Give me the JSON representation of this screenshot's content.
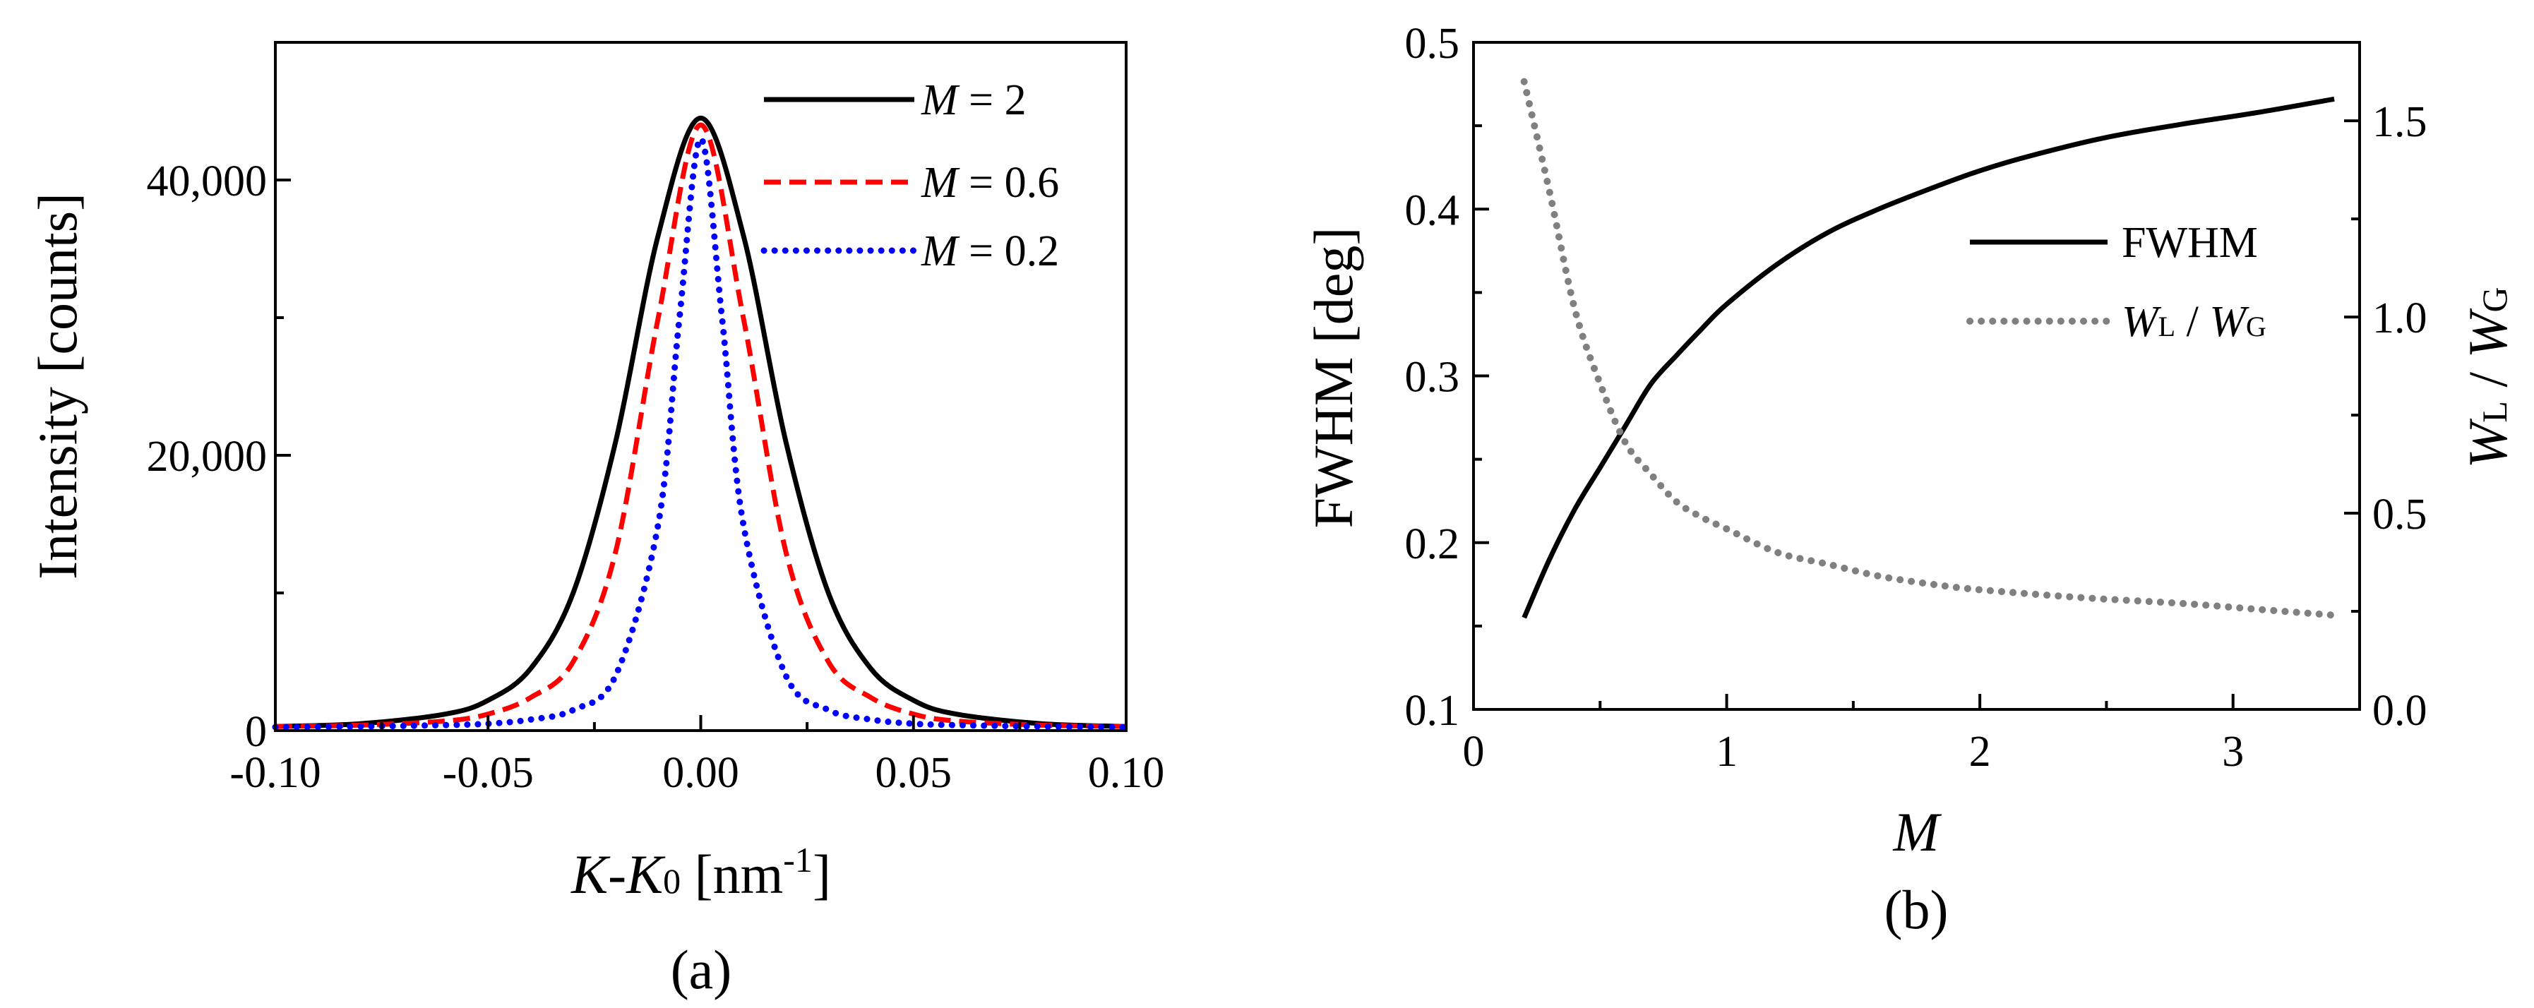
{
  "chart_data": [
    {
      "panel": "a",
      "type": "line",
      "caption": "(a)",
      "xlabel": {
        "main": "K",
        "dash": "-",
        "sym": "K",
        "sub": "0",
        "unit_open": " [nm",
        "sup": "-1",
        "unit_close": "]"
      },
      "ylabel": "Intensity [counts]",
      "xlim": [
        -0.1,
        0.1
      ],
      "ylim": [
        0,
        50000
      ],
      "xticks": [
        {
          "value": -0.1,
          "label": "-0.10"
        },
        {
          "value": -0.05,
          "label": "-0.05"
        },
        {
          "value": 0.0,
          "label": "0.00"
        },
        {
          "value": 0.05,
          "label": "0.05"
        },
        {
          "value": 0.1,
          "label": "0.10"
        }
      ],
      "yticks": [
        {
          "value": 0,
          "label": "0"
        },
        {
          "value": 20000,
          "label": "20,000"
        },
        {
          "value": 40000,
          "label": "40,000"
        }
      ],
      "legend_position": "top-right",
      "series": [
        {
          "name": "M = 2",
          "sym": "M",
          "rest": " = 2",
          "color": "#000000",
          "style": "solid",
          "points": [
            [
              -0.1,
              300
            ],
            [
              -0.08,
              500
            ],
            [
              -0.06,
              1200
            ],
            [
              -0.05,
              2200
            ],
            [
              -0.04,
              4500
            ],
            [
              -0.03,
              10000
            ],
            [
              -0.02,
              21000
            ],
            [
              -0.01,
              36000
            ],
            [
              0.0,
              44500
            ],
            [
              0.01,
              36000
            ],
            [
              0.02,
              21000
            ],
            [
              0.03,
              10000
            ],
            [
              0.04,
              4500
            ],
            [
              0.05,
              2200
            ],
            [
              0.06,
              1200
            ],
            [
              0.08,
              500
            ],
            [
              0.1,
              300
            ]
          ]
        },
        {
          "name": "M = 0.6",
          "sym": "M",
          "rest": " = 0.6",
          "color": "#ff0000",
          "style": "dashed",
          "points": [
            [
              -0.1,
              300
            ],
            [
              -0.08,
              400
            ],
            [
              -0.06,
              700
            ],
            [
              -0.05,
              1200
            ],
            [
              -0.04,
              2400
            ],
            [
              -0.03,
              5000
            ],
            [
              -0.02,
              13000
            ],
            [
              -0.01,
              30000
            ],
            [
              0.0,
              44000
            ],
            [
              0.01,
              30000
            ],
            [
              0.02,
              13000
            ],
            [
              0.03,
              5000
            ],
            [
              0.04,
              2400
            ],
            [
              0.05,
              1200
            ],
            [
              0.06,
              700
            ],
            [
              0.08,
              400
            ],
            [
              0.1,
              300
            ]
          ]
        },
        {
          "name": "M = 0.2",
          "sym": "M",
          "rest": " = 0.2",
          "color": "#0000ff",
          "style": "dotted",
          "points": [
            [
              -0.1,
              250
            ],
            [
              -0.08,
              300
            ],
            [
              -0.06,
              400
            ],
            [
              -0.05,
              500
            ],
            [
              -0.04,
              800
            ],
            [
              -0.03,
              1500
            ],
            [
              -0.02,
              4000
            ],
            [
              -0.01,
              15000
            ],
            [
              -0.005,
              30000
            ],
            [
              0.0,
              43000
            ],
            [
              0.005,
              30000
            ],
            [
              0.01,
              15000
            ],
            [
              0.02,
              4000
            ],
            [
              0.03,
              1500
            ],
            [
              0.04,
              800
            ],
            [
              0.05,
              500
            ],
            [
              0.06,
              400
            ],
            [
              0.08,
              300
            ],
            [
              0.1,
              250
            ]
          ]
        }
      ]
    },
    {
      "panel": "b",
      "type": "line",
      "caption": "(b)",
      "xlabel": "M",
      "ylabel": "FWHM [deg]",
      "y2label": {
        "w1": "W",
        "s1": "L",
        "mid": " / ",
        "w2": "W",
        "s2": "G"
      },
      "xlim": [
        0,
        3.5
      ],
      "ylim": [
        0.1,
        0.5
      ],
      "y2lim": [
        0.0,
        1.7
      ],
      "xticks": [
        {
          "value": 0,
          "label": "0"
        },
        {
          "value": 1,
          "label": "1"
        },
        {
          "value": 2,
          "label": "2"
        },
        {
          "value": 3,
          "label": "3"
        }
      ],
      "yticks": [
        {
          "value": 0.1,
          "label": "0.1"
        },
        {
          "value": 0.2,
          "label": "0.2"
        },
        {
          "value": 0.3,
          "label": "0.3"
        },
        {
          "value": 0.4,
          "label": "0.4"
        },
        {
          "value": 0.5,
          "label": "0.5"
        }
      ],
      "y2ticks": [
        {
          "value": 0.0,
          "label": "0.0"
        },
        {
          "value": 0.5,
          "label": "0.5"
        },
        {
          "value": 1.0,
          "label": "1.0"
        },
        {
          "value": 1.5,
          "label": "1.5"
        }
      ],
      "legend_position": "center-right",
      "series": [
        {
          "name": "FWHM",
          "axis": "left",
          "color": "#000000",
          "style": "solid",
          "points": [
            [
              0.2,
              0.155
            ],
            [
              0.3,
              0.19
            ],
            [
              0.4,
              0.22
            ],
            [
              0.5,
              0.245
            ],
            [
              0.6,
              0.27
            ],
            [
              0.7,
              0.295
            ],
            [
              0.8,
              0.312
            ],
            [
              0.9,
              0.328
            ],
            [
              1.0,
              0.343
            ],
            [
              1.2,
              0.367
            ],
            [
              1.4,
              0.386
            ],
            [
              1.6,
              0.4
            ],
            [
              1.8,
              0.412
            ],
            [
              2.0,
              0.423
            ],
            [
              2.2,
              0.432
            ],
            [
              2.5,
              0.443
            ],
            [
              2.8,
              0.451
            ],
            [
              3.1,
              0.458
            ],
            [
              3.4,
              0.466
            ]
          ]
        },
        {
          "name": "WL / WG",
          "axis": "right",
          "color": "#808080",
          "style": "dotted",
          "label": {
            "w1": "W",
            "s1": "L",
            "mid": " / ",
            "w2": "W",
            "s2": "G"
          },
          "points": [
            [
              0.2,
              1.6
            ],
            [
              0.3,
              1.32
            ],
            [
              0.4,
              1.02
            ],
            [
              0.5,
              0.83
            ],
            [
              0.6,
              0.68
            ],
            [
              0.7,
              0.6
            ],
            [
              0.8,
              0.53
            ],
            [
              0.9,
              0.49
            ],
            [
              1.0,
              0.46
            ],
            [
              1.2,
              0.4
            ],
            [
              1.4,
              0.37
            ],
            [
              1.6,
              0.34
            ],
            [
              1.8,
              0.32
            ],
            [
              2.0,
              0.305
            ],
            [
              2.4,
              0.285
            ],
            [
              2.8,
              0.27
            ],
            [
              3.1,
              0.255
            ],
            [
              3.4,
              0.24
            ]
          ]
        }
      ]
    }
  ]
}
